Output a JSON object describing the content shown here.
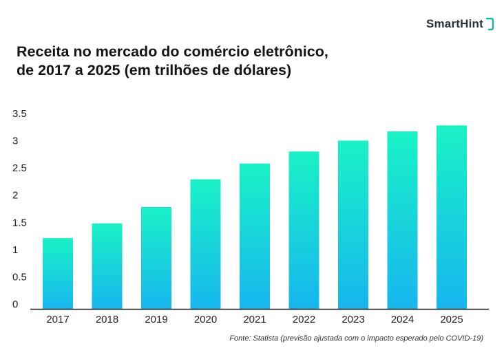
{
  "brand": {
    "name": "SmartHint",
    "accent": "#14b8a6"
  },
  "chart_data": {
    "type": "bar",
    "title_lines": [
      "Receita no mercado do comércio eletrônico,",
      "de 2017 a 2025 (em trilhões de dólares)"
    ],
    "categories": [
      "2017",
      "2018",
      "2019",
      "2020",
      "2021",
      "2022",
      "2023",
      "2024",
      "2025"
    ],
    "values": [
      1.3,
      1.57,
      1.87,
      2.38,
      2.67,
      2.89,
      3.09,
      3.26,
      3.37
    ],
    "y_ticks": [
      "3.5",
      "3",
      "2.5",
      "2",
      "1.5",
      "1",
      "0.5",
      "0"
    ],
    "ylim": [
      0,
      3.5
    ],
    "grid": false,
    "colors": {
      "bar_top": "#19f2c6",
      "bar_bottom": "#17b6ef",
      "axis": "#222222"
    }
  },
  "source": "Fonte: Statista (previsão ajustada com o impacto esperado pelo COVID-19)"
}
